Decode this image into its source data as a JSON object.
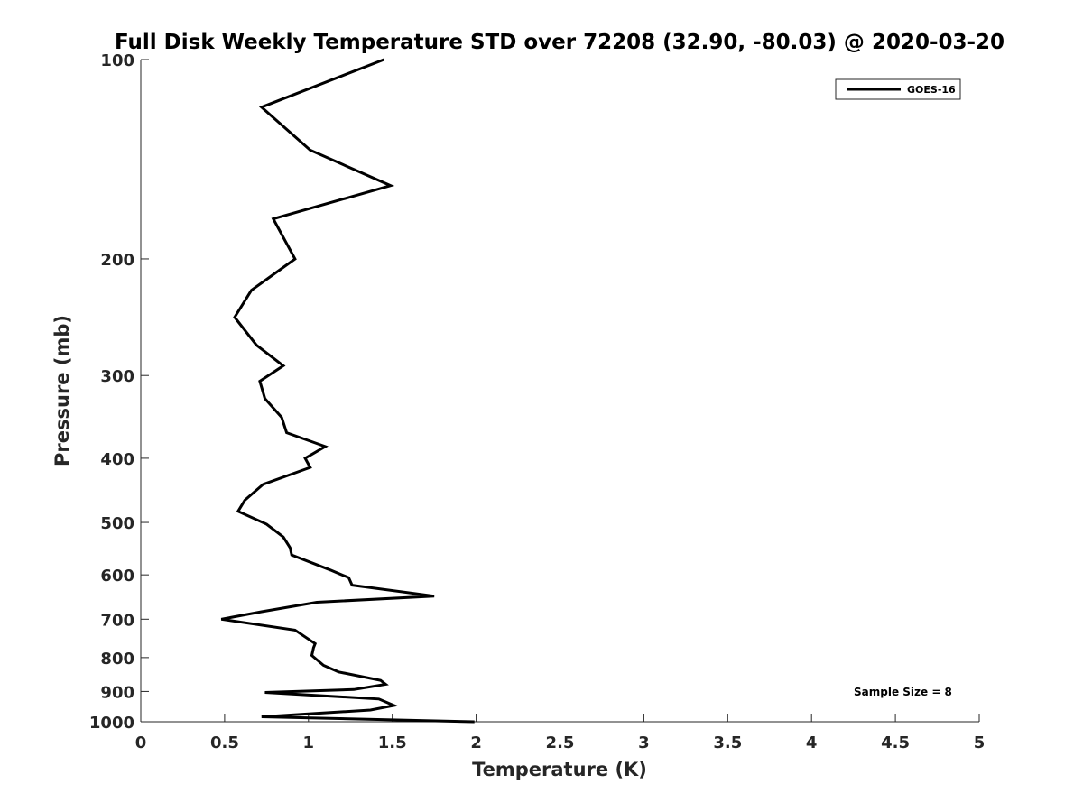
{
  "chart_data": {
    "type": "line",
    "title": "Full Disk Weekly Temperature STD over 72208 (32.90, -80.03) @ 2020-03-20",
    "xlabel": "Temperature (K)",
    "ylabel": "Pressure (mb)",
    "xlim": [
      0,
      5
    ],
    "ylim": [
      100,
      1000
    ],
    "yscale": "log",
    "y_reversed": true,
    "grid": false,
    "xticks": [
      0,
      0.5,
      1,
      1.5,
      2,
      2.5,
      3,
      3.5,
      4,
      4.5,
      5
    ],
    "xtick_labels": [
      "0",
      "0.5",
      "1",
      "1.5",
      "2",
      "2.5",
      "3",
      "3.5",
      "4",
      "4.5",
      "5"
    ],
    "yticks": [
      100,
      200,
      300,
      400,
      500,
      600,
      700,
      800,
      900,
      1000
    ],
    "ytick_labels": [
      "100",
      "200",
      "300",
      "400",
      "500",
      "600",
      "700",
      "800",
      "900",
      "1000"
    ],
    "legend": {
      "position": "top-right",
      "entries": [
        "GOES-16"
      ]
    },
    "annotation": "Sample Size = 8",
    "series": [
      {
        "name": "GOES-16",
        "color": "#000000",
        "points": [
          [
            1.45,
            100
          ],
          [
            0.72,
            118
          ],
          [
            1.01,
            137
          ],
          [
            1.49,
            155
          ],
          [
            0.79,
            174
          ],
          [
            0.92,
            200
          ],
          [
            0.66,
            223
          ],
          [
            0.56,
            245
          ],
          [
            0.69,
            270
          ],
          [
            0.85,
            290
          ],
          [
            0.71,
            306
          ],
          [
            0.74,
            325
          ],
          [
            0.84,
            347
          ],
          [
            0.87,
            366
          ],
          [
            1.1,
            384
          ],
          [
            0.98,
            400
          ],
          [
            1.01,
            413
          ],
          [
            0.73,
            438
          ],
          [
            0.62,
            463
          ],
          [
            0.58,
            481
          ],
          [
            0.75,
            503
          ],
          [
            0.85,
            526
          ],
          [
            0.89,
            546
          ],
          [
            0.9,
            560
          ],
          [
            1.13,
            590
          ],
          [
            1.24,
            606
          ],
          [
            1.26,
            622
          ],
          [
            1.75,
            646
          ],
          [
            1.05,
            660
          ],
          [
            0.72,
            682
          ],
          [
            0.48,
            700
          ],
          [
            0.92,
            727
          ],
          [
            1.04,
            762
          ],
          [
            1.03,
            773
          ],
          [
            1.02,
            794
          ],
          [
            1.09,
            822
          ],
          [
            1.18,
            841
          ],
          [
            1.43,
            866
          ],
          [
            1.46,
            878
          ],
          [
            1.27,
            894
          ],
          [
            0.74,
            903
          ],
          [
            1.42,
            924
          ],
          [
            1.51,
            945
          ],
          [
            1.37,
            960
          ],
          [
            0.72,
            983
          ],
          [
            1.99,
            1000
          ]
        ]
      }
    ]
  }
}
